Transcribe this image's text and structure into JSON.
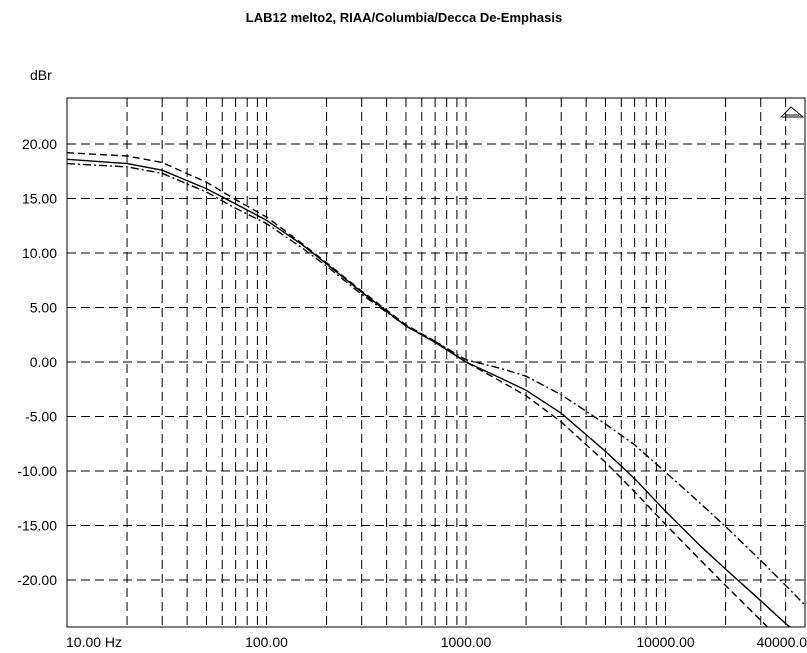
{
  "chart_data": {
    "type": "line",
    "title": "LAB12 melto2, RIAA/Columbia/Decca De-Emphasis",
    "ylabel": "dBr",
    "xlabel": "",
    "xscale": "log",
    "xlim": [
      10,
      50000
    ],
    "ylim": [
      -24,
      24
    ],
    "grid": true,
    "x_tick_labels": [
      {
        "value": 10,
        "label": "10.00 Hz"
      },
      {
        "value": 100,
        "label": "100.00"
      },
      {
        "value": 1000,
        "label": "1000.00"
      },
      {
        "value": 10000,
        "label": "10000.00"
      },
      {
        "value": 40000,
        "label": "40000.00"
      }
    ],
    "y_ticks": [
      20,
      15,
      10,
      5,
      0,
      -5,
      -10,
      -15,
      -20
    ],
    "y_tick_labels": [
      "20.00",
      "15.00",
      "10.00",
      "5.00",
      "0.00",
      "-5.00",
      "-10.00",
      "-15.00",
      "-20.00"
    ],
    "series": [
      {
        "style": "solid",
        "x": [
          10,
          20,
          30,
          50,
          70,
          100,
          150,
          200,
          300,
          500,
          700,
          1000,
          1500,
          2000,
          3000,
          5000,
          7000,
          10000,
          15000,
          20000,
          30000,
          40000,
          50000
        ],
        "y": [
          18.6,
          18.2,
          17.6,
          15.9,
          14.5,
          13.0,
          10.8,
          9.0,
          6.4,
          3.3,
          1.8,
          0.0,
          -1.5,
          -2.6,
          -4.7,
          -8.2,
          -10.7,
          -13.7,
          -16.9,
          -19.0,
          -21.9,
          -24.0,
          -25.5
        ]
      },
      {
        "style": "dashed",
        "x": [
          10,
          20,
          30,
          50,
          70,
          100,
          150,
          200,
          300,
          500,
          700,
          1000,
          1500,
          2000,
          3000,
          5000,
          7000,
          10000,
          15000,
          20000,
          30000,
          40000,
          50000
        ],
        "y": [
          19.2,
          18.9,
          18.3,
          16.5,
          14.9,
          13.3,
          10.9,
          9.1,
          6.5,
          3.4,
          1.9,
          0.0,
          -1.8,
          -3.1,
          -5.5,
          -9.2,
          -11.9,
          -14.9,
          -18.2,
          -20.5,
          -23.7,
          -26.0,
          -27.7
        ]
      },
      {
        "style": "dash-dot",
        "x": [
          10,
          20,
          30,
          50,
          70,
          100,
          150,
          200,
          300,
          500,
          700,
          1000,
          1500,
          2000,
          3000,
          5000,
          7000,
          10000,
          15000,
          20000,
          30000,
          40000,
          50000
        ],
        "y": [
          18.2,
          17.9,
          17.3,
          15.6,
          14.1,
          12.7,
          10.5,
          8.8,
          6.2,
          3.3,
          1.9,
          0.2,
          -0.6,
          -1.3,
          -3.0,
          -5.7,
          -7.6,
          -10.1,
          -13.0,
          -15.1,
          -18.2,
          -20.5,
          -22.3
        ]
      }
    ]
  }
}
